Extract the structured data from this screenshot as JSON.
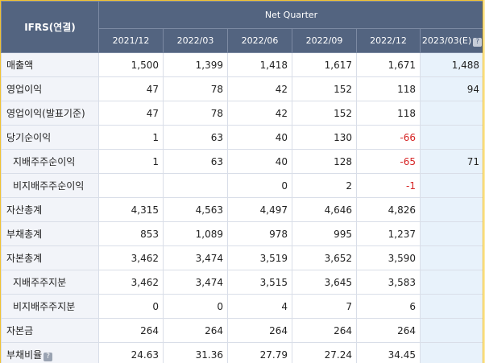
{
  "header": {
    "ifrs_label": "IFRS(연결)",
    "group_label": "Net Quarter",
    "periods": [
      "2021/12",
      "2022/03",
      "2022/06",
      "2022/09",
      "2022/12",
      "2023/03(E)"
    ]
  },
  "rows": [
    {
      "label": "매출액",
      "sub": false,
      "values": [
        "1,500",
        "1,399",
        "1,418",
        "1,617",
        "1,671",
        "1,488"
      ]
    },
    {
      "label": "영업이익",
      "sub": false,
      "values": [
        "47",
        "78",
        "42",
        "152",
        "118",
        "94"
      ]
    },
    {
      "label": "영업이익(발표기준)",
      "sub": false,
      "values": [
        "47",
        "78",
        "42",
        "152",
        "118",
        ""
      ]
    },
    {
      "label": "당기순이익",
      "sub": false,
      "values": [
        "1",
        "63",
        "40",
        "130",
        "-66",
        ""
      ]
    },
    {
      "label": "지배주주순이익",
      "sub": true,
      "values": [
        "1",
        "63",
        "40",
        "128",
        "-65",
        "71"
      ]
    },
    {
      "label": "비지배주주순이익",
      "sub": true,
      "values": [
        "",
        "",
        "0",
        "2",
        "-1",
        ""
      ]
    },
    {
      "label": "자산총계",
      "sub": false,
      "values": [
        "4,315",
        "4,563",
        "4,497",
        "4,646",
        "4,826",
        ""
      ]
    },
    {
      "label": "부채총계",
      "sub": false,
      "values": [
        "853",
        "1,089",
        "978",
        "995",
        "1,237",
        ""
      ]
    },
    {
      "label": "자본총계",
      "sub": false,
      "values": [
        "3,462",
        "3,474",
        "3,519",
        "3,652",
        "3,590",
        ""
      ]
    },
    {
      "label": "지배주주지분",
      "sub": true,
      "values": [
        "3,462",
        "3,474",
        "3,515",
        "3,645",
        "3,583",
        ""
      ]
    },
    {
      "label": "비지배주주지분",
      "sub": true,
      "values": [
        "0",
        "0",
        "4",
        "7",
        "6",
        ""
      ]
    },
    {
      "label": "자본금",
      "sub": false,
      "values": [
        "264",
        "264",
        "264",
        "264",
        "264",
        ""
      ]
    },
    {
      "label": "부채비율",
      "sub": false,
      "help": true,
      "values": [
        "24.63",
        "31.36",
        "27.79",
        "27.24",
        "34.45",
        ""
      ]
    }
  ],
  "colors": {
    "header_bg": "#536480",
    "label_bg": "#f2f4f9",
    "estimate_bg": "#e8f2fb",
    "negative": "#d62424",
    "frame": "#f1c232"
  },
  "icons": {
    "help": "question-mark-icon"
  }
}
